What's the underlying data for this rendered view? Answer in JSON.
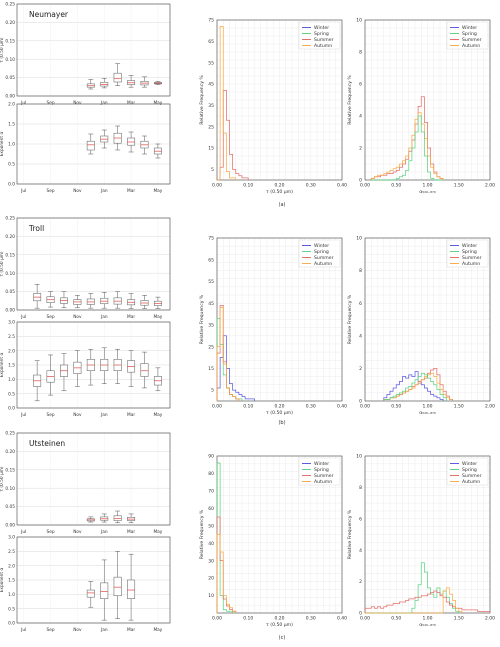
{
  "figure": {
    "panel_labels": [
      "(a)",
      "(b)",
      "(c)"
    ],
    "colors": {
      "Winter": "#4a4ae0",
      "Spring": "#4ecf7a",
      "Summer": "#e0605a",
      "Autumn": "#f5a53a",
      "box": "#9a9a9a",
      "median": "#e0605a"
    }
  },
  "chart_data": [
    {
      "id": "a-aod",
      "type": "box",
      "title": "Neumayer",
      "ylabel": "τ (0.50 μm)",
      "ylim": [
        0,
        0.25
      ],
      "yticks": [
        "0.00",
        "0.05",
        "0.10",
        "0.15",
        "0.20",
        "0.25"
      ],
      "categories": [
        "Jul",
        "Sep",
        "Nov",
        "Jan",
        "Mar",
        "May"
      ],
      "boxes": [
        {
          "x": 5,
          "whislo": 0.019,
          "q1": 0.024,
          "med": 0.028,
          "q3": 0.033,
          "whishi": 0.045
        },
        {
          "x": 6,
          "whislo": 0.022,
          "q1": 0.027,
          "med": 0.031,
          "q3": 0.037,
          "whishi": 0.048
        },
        {
          "x": 7,
          "whislo": 0.028,
          "q1": 0.038,
          "med": 0.048,
          "q3": 0.062,
          "whishi": 0.088
        },
        {
          "x": 8,
          "whislo": 0.024,
          "q1": 0.031,
          "med": 0.036,
          "q3": 0.042,
          "whishi": 0.056
        },
        {
          "x": 9,
          "whislo": 0.024,
          "q1": 0.03,
          "med": 0.035,
          "q3": 0.04,
          "whishi": 0.052
        },
        {
          "x": 10,
          "whislo": 0.031,
          "q1": 0.033,
          "med": 0.035,
          "q3": 0.037,
          "whishi": 0.04
        }
      ]
    },
    {
      "id": "a-alpha",
      "type": "box",
      "title": "",
      "ylabel": "Exponent α",
      "ylim": [
        0,
        2.0
      ],
      "yticks": [
        "0.0",
        "0.5",
        "1.0",
        "1.5",
        "2.0"
      ],
      "categories": [
        "Jul",
        "Sep",
        "Nov",
        "Jan",
        "Mar",
        "May"
      ],
      "boxes": [
        {
          "x": 5,
          "whislo": 0.75,
          "q1": 0.85,
          "med": 0.98,
          "q3": 1.07,
          "whishi": 1.25
        },
        {
          "x": 6,
          "whislo": 0.9,
          "q1": 1.05,
          "med": 1.12,
          "q3": 1.2,
          "whishi": 1.35
        },
        {
          "x": 7,
          "whislo": 0.85,
          "q1": 1.02,
          "med": 1.15,
          "q3": 1.27,
          "whishi": 1.45
        },
        {
          "x": 8,
          "whislo": 0.8,
          "q1": 0.97,
          "med": 1.05,
          "q3": 1.15,
          "whishi": 1.3
        },
        {
          "x": 9,
          "whislo": 0.75,
          "q1": 0.9,
          "med": 0.98,
          "q3": 1.07,
          "whishi": 1.2
        },
        {
          "x": 10,
          "whislo": 0.65,
          "q1": 0.75,
          "med": 0.82,
          "q3": 0.9,
          "whishi": 1.0
        }
      ]
    },
    {
      "id": "b-aod",
      "type": "box",
      "title": "Troll",
      "ylabel": "τ (0.50 μm)",
      "ylim": [
        0,
        0.25
      ],
      "yticks": [
        "0.00",
        "0.05",
        "0.10",
        "0.15",
        "0.20",
        "0.25"
      ],
      "categories": [
        "Jul",
        "Sep",
        "Nov",
        "Jan",
        "Mar",
        "May"
      ],
      "boxes": [
        {
          "x": 1,
          "whislo": 0.005,
          "q1": 0.025,
          "med": 0.035,
          "q3": 0.045,
          "whishi": 0.07
        },
        {
          "x": 2,
          "whislo": 0.008,
          "q1": 0.02,
          "med": 0.028,
          "q3": 0.036,
          "whishi": 0.05
        },
        {
          "x": 3,
          "whislo": 0.006,
          "q1": 0.018,
          "med": 0.026,
          "q3": 0.033,
          "whishi": 0.05
        },
        {
          "x": 4,
          "whislo": 0.006,
          "q1": 0.015,
          "med": 0.022,
          "q3": 0.028,
          "whishi": 0.04
        },
        {
          "x": 5,
          "whislo": 0.005,
          "q1": 0.015,
          "med": 0.022,
          "q3": 0.03,
          "whishi": 0.045
        },
        {
          "x": 6,
          "whislo": 0.005,
          "q1": 0.017,
          "med": 0.024,
          "q3": 0.032,
          "whishi": 0.048
        },
        {
          "x": 7,
          "whislo": 0.005,
          "q1": 0.016,
          "med": 0.024,
          "q3": 0.033,
          "whishi": 0.05
        },
        {
          "x": 8,
          "whislo": 0.004,
          "q1": 0.014,
          "med": 0.021,
          "q3": 0.028,
          "whishi": 0.045
        },
        {
          "x": 9,
          "whislo": 0.004,
          "q1": 0.013,
          "med": 0.019,
          "q3": 0.026,
          "whishi": 0.04
        },
        {
          "x": 10,
          "whislo": 0.004,
          "q1": 0.012,
          "med": 0.018,
          "q3": 0.024,
          "whishi": 0.035
        }
      ]
    },
    {
      "id": "b-alpha",
      "type": "box",
      "title": "",
      "ylabel": "Exponent α",
      "ylim": [
        0,
        3.0
      ],
      "yticks": [
        "0.0",
        "0.5",
        "1.0",
        "1.5",
        "2.0",
        "2.5",
        "3.0"
      ],
      "categories": [
        "Jul",
        "Sep",
        "Nov",
        "Jan",
        "Mar",
        "May"
      ],
      "boxes": [
        {
          "x": 1,
          "whislo": 0.25,
          "q1": 0.75,
          "med": 0.95,
          "q3": 1.15,
          "whishi": 1.65
        },
        {
          "x": 2,
          "whislo": 0.45,
          "q1": 0.9,
          "med": 1.1,
          "q3": 1.3,
          "whishi": 1.85
        },
        {
          "x": 3,
          "whislo": 0.6,
          "q1": 1.1,
          "med": 1.3,
          "q3": 1.5,
          "whishi": 1.9
        },
        {
          "x": 4,
          "whislo": 0.75,
          "q1": 1.2,
          "med": 1.4,
          "q3": 1.6,
          "whishi": 2.0
        },
        {
          "x": 5,
          "whislo": 0.8,
          "q1": 1.3,
          "med": 1.5,
          "q3": 1.7,
          "whishi": 2.05
        },
        {
          "x": 6,
          "whislo": 0.85,
          "q1": 1.3,
          "med": 1.5,
          "q3": 1.7,
          "whishi": 2.1
        },
        {
          "x": 7,
          "whislo": 0.85,
          "q1": 1.3,
          "med": 1.5,
          "q3": 1.7,
          "whishi": 2.05
        },
        {
          "x": 8,
          "whislo": 0.75,
          "q1": 1.25,
          "med": 1.45,
          "q3": 1.65,
          "whishi": 2.0
        },
        {
          "x": 9,
          "whislo": 0.7,
          "q1": 1.1,
          "med": 1.3,
          "q3": 1.55,
          "whishi": 1.95
        },
        {
          "x": 10,
          "whislo": 0.6,
          "q1": 0.8,
          "med": 0.95,
          "q3": 1.1,
          "whishi": 1.4
        }
      ]
    },
    {
      "id": "c-aod",
      "type": "box",
      "title": "Utsteinen",
      "ylabel": "τ (0.50 μm)",
      "ylim": [
        0,
        0.25
      ],
      "yticks": [
        "0.00",
        "0.05",
        "0.10",
        "0.15",
        "0.20",
        "0.25"
      ],
      "categories": [
        "Jul",
        "Sep",
        "Nov",
        "Jan",
        "Mar",
        "May"
      ],
      "boxes": [
        {
          "x": 5,
          "whislo": 0.008,
          "q1": 0.011,
          "med": 0.014,
          "q3": 0.017,
          "whishi": 0.022
        },
        {
          "x": 6,
          "whislo": 0.008,
          "q1": 0.013,
          "med": 0.017,
          "q3": 0.022,
          "whishi": 0.03
        },
        {
          "x": 7,
          "whislo": 0.006,
          "q1": 0.012,
          "med": 0.018,
          "q3": 0.025,
          "whishi": 0.038
        },
        {
          "x": 8,
          "whislo": 0.006,
          "q1": 0.012,
          "med": 0.016,
          "q3": 0.021,
          "whishi": 0.03
        }
      ]
    },
    {
      "id": "c-alpha",
      "type": "box",
      "title": "",
      "ylabel": "Exponent α",
      "ylim": [
        0,
        3.0
      ],
      "yticks": [
        "0.0",
        "0.5",
        "1.0",
        "1.5",
        "2.0",
        "2.5",
        "3.0"
      ],
      "categories": [
        "Jul",
        "Sep",
        "Nov",
        "Jan",
        "Mar",
        "May"
      ],
      "boxes": [
        {
          "x": 5,
          "whislo": 0.55,
          "q1": 0.9,
          "med": 1.05,
          "q3": 1.15,
          "whishi": 1.45
        },
        {
          "x": 6,
          "whislo": 0.1,
          "q1": 0.85,
          "med": 1.1,
          "q3": 1.4,
          "whishi": 2.2
        },
        {
          "x": 7,
          "whislo": 0.15,
          "q1": 0.95,
          "med": 1.25,
          "q3": 1.6,
          "whishi": 2.5
        },
        {
          "x": 8,
          "whislo": 0.1,
          "q1": 0.85,
          "med": 1.15,
          "q3": 1.5,
          "whishi": 2.4
        }
      ]
    },
    {
      "id": "a-hist-aod",
      "type": "histogram",
      "panel": "(a)",
      "xlabel": "τ (0.50 μm)",
      "ylabel": "Relative Frequency %",
      "xlim": [
        0,
        0.4
      ],
      "ylim": [
        0,
        75
      ],
      "yticks": [
        5,
        15,
        25,
        35,
        45,
        55,
        65,
        75
      ],
      "xticks": [
        "0.00",
        "0.10",
        "0.20",
        "0.30",
        "0.40"
      ],
      "legend": [
        "Winter",
        "Spring",
        "Summer",
        "Autumn"
      ],
      "legend_loc": "upper right",
      "bin_width": 0.01,
      "series": [
        {
          "name": "Summer",
          "values": [
            0,
            6,
            42,
            28,
            12,
            5,
            3,
            2,
            1,
            1
          ]
        },
        {
          "name": "Autumn",
          "values": [
            0,
            72,
            22,
            4,
            1,
            1
          ]
        }
      ]
    },
    {
      "id": "a-hist-alpha",
      "type": "histogram",
      "panel": "(a)",
      "xlabel": "α₅₄₀₋₈₇₀",
      "ylabel": "Relative Frequency %",
      "xlim": [
        0,
        2.0
      ],
      "ylim": [
        0,
        10
      ],
      "yticks": [
        0,
        2,
        4,
        6,
        8,
        10
      ],
      "xticks": [
        "0.00",
        "0.50",
        "1.00",
        "1.50",
        "2.00"
      ],
      "legend": [
        "Winter",
        "Spring",
        "Summer",
        "Autumn"
      ],
      "legend_loc": "upper right",
      "bin_width": 0.05,
      "x_start": 0.1,
      "series": [
        {
          "name": "Summer",
          "values": [
            0.1,
            0.2,
            0.2,
            0.3,
            0.3,
            0.4,
            0.4,
            0.5,
            0.6,
            0.8,
            1.0,
            1.3,
            1.8,
            2.5,
            3.5,
            4.6,
            5.2,
            3.6,
            2.0,
            1.0,
            0.5,
            0.2,
            0.1
          ]
        },
        {
          "name": "Autumn",
          "values": [
            0.1,
            0.2,
            0.3,
            0.3,
            0.4,
            0.5,
            0.6,
            0.7,
            0.8,
            1.0,
            1.2,
            1.5,
            2.0,
            2.8,
            3.8,
            4.2,
            3.5,
            2.6,
            1.5,
            0.8,
            0.4,
            0.2,
            0.1
          ]
        },
        {
          "name": "Spring",
          "values": [
            0,
            0,
            0,
            0,
            0,
            0,
            0,
            0,
            0.1,
            0.2,
            0.3,
            0.6,
            1.2,
            2.0,
            3.0,
            4.0,
            3.0,
            1.5,
            0.5,
            0.1,
            0,
            0,
            0
          ]
        }
      ]
    },
    {
      "id": "b-hist-aod",
      "type": "histogram",
      "panel": "(b)",
      "xlabel": "τ (0.50 μm)",
      "ylabel": "Relative Frequency %",
      "xlim": [
        0,
        0.4
      ],
      "ylim": [
        0,
        75
      ],
      "yticks": [
        5,
        15,
        25,
        35,
        45,
        55,
        65,
        75
      ],
      "xticks": [
        "0.00",
        "0.10",
        "0.20",
        "0.30",
        "0.40"
      ],
      "legend": [
        "Winter",
        "Spring",
        "Summer",
        "Autumn"
      ],
      "legend_loc": "upper right",
      "bin_width": 0.01,
      "series": [
        {
          "name": "Winter",
          "values": [
            6,
            20,
            30,
            15,
            8,
            5,
            4,
            3,
            2,
            1,
            1,
            1
          ]
        },
        {
          "name": "Spring",
          "values": [
            38,
            26,
            12,
            6,
            3,
            2,
            1,
            1
          ]
        },
        {
          "name": "Summer",
          "values": [
            22,
            44,
            18,
            6,
            3,
            2,
            1
          ]
        },
        {
          "name": "Autumn",
          "values": [
            25,
            43,
            17,
            6,
            3,
            2,
            1
          ]
        }
      ]
    },
    {
      "id": "b-hist-alpha",
      "type": "histogram",
      "panel": "(b)",
      "xlabel": "α₅₄₀₋₈₇₀",
      "ylabel": "Relative Frequency %",
      "xlim": [
        0,
        2.0
      ],
      "ylim": [
        0,
        10
      ],
      "yticks": [
        0,
        2,
        4,
        6,
        8,
        10
      ],
      "xticks": [
        "0.00",
        "0.50",
        "1.00",
        "1.50",
        "2.00"
      ],
      "legend": [
        "Winter",
        "Spring",
        "Summer",
        "Autumn"
      ],
      "legend_loc": "upper right",
      "bin_width": 0.05,
      "x_start": 0.3,
      "series": [
        {
          "name": "Winter",
          "values": [
            0.2,
            0.4,
            0.6,
            0.8,
            1.0,
            1.2,
            1.5,
            1.4,
            1.6,
            1.5,
            1.8,
            1.2,
            1.0,
            0.8,
            0.6,
            0.4,
            0.3,
            0.2,
            0.1
          ]
        },
        {
          "name": "Summer",
          "values": [
            0.1,
            0.1,
            0.2,
            0.2,
            0.3,
            0.4,
            0.5,
            0.6,
            0.7,
            0.9,
            1.0,
            1.1,
            1.3,
            1.4,
            1.7,
            1.9,
            2.0,
            1.6,
            1.0,
            0.6,
            0.3,
            0.1
          ]
        },
        {
          "name": "Autumn",
          "values": [
            0.1,
            0.1,
            0.2,
            0.2,
            0.3,
            0.4,
            0.5,
            0.6,
            0.7,
            0.8,
            1.0,
            1.2,
            1.3,
            1.5,
            1.6,
            1.7,
            1.5,
            1.1,
            0.7,
            0.4,
            0.2,
            0.1
          ]
        },
        {
          "name": "Spring",
          "values": [
            0.1,
            0.1,
            0.2,
            0.3,
            0.4,
            0.5,
            0.6,
            0.8,
            0.9,
            1.1,
            1.3,
            1.5,
            1.7,
            1.6,
            1.4,
            1.2,
            1.0,
            0.7,
            0.4,
            0.2
          ]
        }
      ]
    },
    {
      "id": "c-hist-aod",
      "type": "histogram",
      "panel": "(c)",
      "xlabel": "τ (0.50 μm)",
      "ylabel": "Relative Frequency %",
      "xlim": [
        0,
        0.4
      ],
      "ylim": [
        0,
        90
      ],
      "yticks": [
        10,
        20,
        30,
        40,
        50,
        60,
        70,
        80,
        90
      ],
      "xticks": [
        "0.00",
        "0.10",
        "0.20",
        "0.30",
        "0.40"
      ],
      "legend": [
        "Winter",
        "Spring",
        "Summer",
        "Autumn"
      ],
      "legend_loc": "upper right",
      "bin_width": 0.01,
      "series": [
        {
          "name": "Spring",
          "values": [
            86,
            10,
            2,
            1,
            1
          ]
        },
        {
          "name": "Summer",
          "values": [
            55,
            30,
            8,
            4,
            2,
            1
          ]
        },
        {
          "name": "Autumn",
          "values": [
            45,
            35,
            10,
            5,
            3,
            1
          ]
        }
      ]
    },
    {
      "id": "c-hist-alpha",
      "type": "histogram",
      "panel": "(c)",
      "xlabel": "α₅₄₀₋₈₇₀",
      "ylabel": "Relative Frequency %",
      "xlim": [
        0,
        2.0
      ],
      "ylim": [
        0,
        10
      ],
      "yticks": [
        0,
        2,
        4,
        6,
        8,
        10
      ],
      "xticks": [
        "0.00",
        "0.50",
        "1.00",
        "1.50",
        "2.00"
      ],
      "legend": [
        "Winter",
        "Spring",
        "Summer",
        "Autumn"
      ],
      "legend_loc": "upper right",
      "bin_width": 0.05,
      "x_start": 0.0,
      "series": [
        {
          "name": "Spring",
          "values": [
            0,
            0,
            0,
            0,
            0,
            0,
            0,
            0,
            0,
            0,
            0,
            0,
            0,
            0,
            0,
            0.3,
            0.8,
            1.8,
            3.2,
            2.6,
            1.6,
            1.2,
            1.0,
            1.6,
            1.2,
            1.4,
            1.0,
            0.6,
            0.3,
            0.1
          ]
        },
        {
          "name": "Summer",
          "values": [
            0.3,
            0.3,
            0.4,
            0.3,
            0.4,
            0.3,
            0.4,
            0.5,
            0.5,
            0.6,
            0.6,
            0.7,
            0.7,
            0.8,
            0.9,
            0.9,
            1.0,
            1.0,
            1.1,
            1.1,
            1.2,
            1.3,
            1.4,
            1.3,
            1.1,
            1.0,
            0.7,
            0.5,
            0.4,
            0.3,
            0.3,
            0.2,
            0.2,
            0.2,
            0.2,
            0.2,
            0.1,
            0.1,
            0.1,
            0.1
          ]
        },
        {
          "name": "Autumn",
          "values": [
            0,
            0,
            0,
            0,
            0,
            0,
            0,
            0,
            0,
            0,
            0,
            0,
            0,
            0,
            0,
            0,
            0,
            0,
            0,
            0,
            0,
            0,
            0,
            0,
            0,
            1.4,
            1.6,
            1.2,
            0.8,
            0.3,
            0.1
          ]
        }
      ]
    }
  ]
}
